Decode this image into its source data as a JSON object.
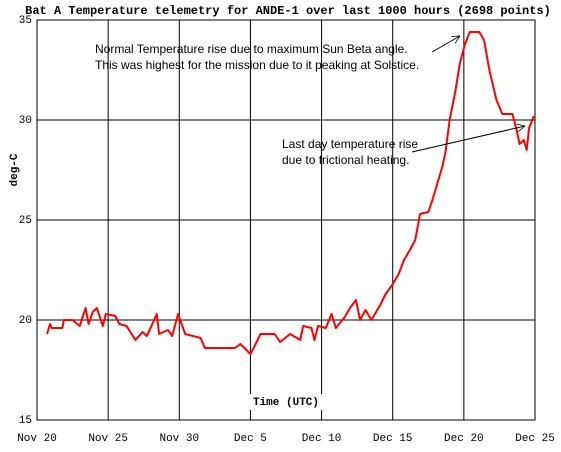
{
  "chart_data": {
    "type": "line",
    "title": "Bat A Temperature telemetry for ANDE-1 over last 1000 hours (2698 points)",
    "y_label": "deg-C",
    "x_label": "Time (UTC)",
    "annotations": [
      [
        "Normal Temperature rise due to maximum Sun Beta angle.",
        "This was highest for the mission due to it peaking at Solstice."
      ],
      [
        "Last day temperature rise",
        "due to frictional heating."
      ]
    ],
    "xlim": [
      0,
      840
    ],
    "xticks": [
      {
        "value": 0,
        "label": "Nov 20"
      },
      {
        "value": 120,
        "label": "Nov 25"
      },
      {
        "value": 240,
        "label": "Nov 30"
      },
      {
        "value": 360,
        "label": "Dec 5"
      },
      {
        "value": 480,
        "label": "Dec 10"
      },
      {
        "value": 600,
        "label": "Dec 15"
      },
      {
        "value": 720,
        "label": "Dec 20"
      },
      {
        "value": 840,
        "label": "Dec 25"
      }
    ],
    "ylim": [
      15,
      35
    ],
    "yticks": [
      15,
      20,
      25,
      30,
      35
    ],
    "grid": true,
    "series": [
      {
        "name": "Bat A",
        "color": "#ff0000",
        "x": [
          17,
          22,
          25,
          43,
          45,
          60,
          72,
          82,
          87,
          94,
          101,
          111,
          116,
          132,
          139,
          151,
          166,
          178,
          185,
          190,
          202,
          206,
          221,
          228,
          238,
          250,
          276,
          283,
          334,
          343,
          350,
          360,
          367,
          377,
          401,
          410,
          427,
          444,
          449,
          463,
          468,
          474,
          487,
          497,
          504,
          518,
          528,
          538,
          545,
          554,
          564,
          578,
          588,
          598,
          610,
          619,
          629,
          638,
          646,
          660,
          667,
          677,
          684,
          689,
          696,
          706,
          713,
          722,
          730,
          746,
          754,
          763,
          775,
          785,
          802,
          809,
          814,
          821,
          826,
          830,
          838
        ],
        "values": [
          19.3,
          19.8,
          19.6,
          19.6,
          20.0,
          20.0,
          19.7,
          20.6,
          19.8,
          20.4,
          20.6,
          19.7,
          20.3,
          20.2,
          19.8,
          19.7,
          19.0,
          19.4,
          19.2,
          19.5,
          20.3,
          19.3,
          19.5,
          19.2,
          20.3,
          19.3,
          19.1,
          18.6,
          18.6,
          18.8,
          18.6,
          18.3,
          18.7,
          19.3,
          19.3,
          18.9,
          19.3,
          19.0,
          19.7,
          19.6,
          19.0,
          19.7,
          19.6,
          20.3,
          19.6,
          20.1,
          20.6,
          21.0,
          20.0,
          20.5,
          20.0,
          20.7,
          21.3,
          21.7,
          22.3,
          23.0,
          23.5,
          24.0,
          25.3,
          25.4,
          26.0,
          27.0,
          27.7,
          28.4,
          30.0,
          31.5,
          32.8,
          33.8,
          34.4,
          34.4,
          34.0,
          32.5,
          31.0,
          30.3,
          30.3,
          29.5,
          28.8,
          29.0,
          28.5,
          29.6,
          30.2
        ]
      }
    ]
  }
}
